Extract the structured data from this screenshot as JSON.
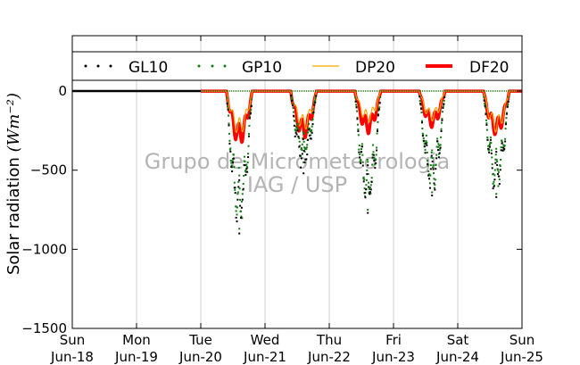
{
  "chart_data": {
    "type": "line",
    "xlabel": "",
    "ylabel": "Solar radiation",
    "ylabel_unit": "(Wm⁻²)",
    "ylim": [
      -1500,
      350
    ],
    "yticks": [
      0,
      -500,
      -1000,
      -1500
    ],
    "ytick_labels": [
      "0",
      "−500",
      "−1000",
      "−1500"
    ],
    "x_range_days": [
      0,
      7
    ],
    "xticks": [
      {
        "day": "Sun",
        "date": "Jun-18"
      },
      {
        "day": "Mon",
        "date": "Jun-19"
      },
      {
        "day": "Tue",
        "date": "Jun-20"
      },
      {
        "day": "Wed",
        "date": "Jun-21"
      },
      {
        "day": "Thu",
        "date": "Jun-22"
      },
      {
        "day": "Fri",
        "date": "Jun-23"
      },
      {
        "day": "Sat",
        "date": "Jun-24"
      },
      {
        "day": "Sun",
        "date": "Jun-25"
      }
    ],
    "grid": "vertical",
    "legend_position": "top",
    "watermark": [
      "Grupo de Micrometeorologia",
      "IAG / USP"
    ],
    "series": [
      {
        "name": "GL10",
        "style": "dots",
        "color": "#000000"
      },
      {
        "name": "GP10",
        "style": "dots",
        "color": "#137a13"
      },
      {
        "name": "DP20",
        "style": "line",
        "color": "#ffa500"
      },
      {
        "name": "DF20",
        "style": "line",
        "color": "#ff0000"
      }
    ],
    "daily_minima": [
      {
        "date": "Jun-20",
        "GL10": -900,
        "GP10": -870,
        "DP20": -280,
        "DF20": -340
      },
      {
        "date": "Jun-21",
        "GL10": -520,
        "GP10": -450,
        "DP20": -250,
        "DF20": -300
      },
      {
        "date": "Jun-22",
        "GL10": -770,
        "GP10": -750,
        "DP20": -200,
        "DF20": -270
      },
      {
        "date": "Jun-23",
        "GL10": -660,
        "GP10": -640,
        "DP20": -190,
        "DF20": -230
      },
      {
        "date": "Jun-24",
        "GL10": -670,
        "GP10": -650,
        "DP20": -260,
        "DF20": -280
      }
    ]
  }
}
